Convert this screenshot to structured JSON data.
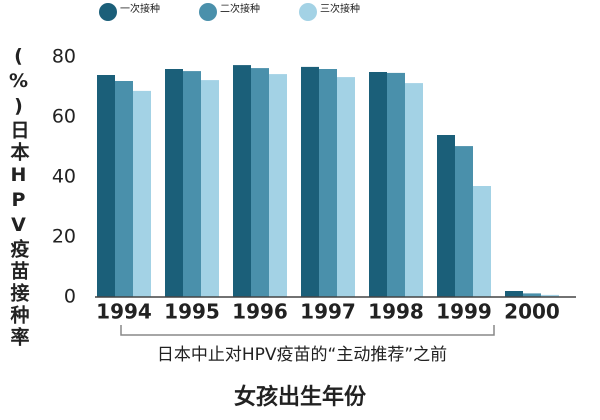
{
  "chart_data": {
    "type": "bar",
    "ylabel": "(%)日本HPV疫苗接种率",
    "xlabel": "女孩出生年份",
    "annotation": "日本中止对HPV疫苗的“主动推荐”之前",
    "categories": [
      "1994",
      "1995",
      "1996",
      "1997",
      "1998",
      "1999",
      "2000"
    ],
    "series": [
      {
        "name": "一次接种",
        "color": "#1b5f79",
        "values": [
          74,
          76,
          77.3,
          76.7,
          75,
          54,
          2
        ]
      },
      {
        "name": "二次接种",
        "color": "#4a90ab",
        "values": [
          72,
          75.3,
          76.3,
          76,
          74.7,
          50.3,
          1.2
        ]
      },
      {
        "name": "三次接种",
        "color": "#a3d2e5",
        "values": [
          68.7,
          72.3,
          74.3,
          73.3,
          71.3,
          37,
          0.7
        ]
      }
    ],
    "ylim": [
      0,
      82
    ],
    "yticks": [
      0,
      20,
      40,
      60,
      80
    ],
    "grid": false,
    "legend": "top"
  }
}
